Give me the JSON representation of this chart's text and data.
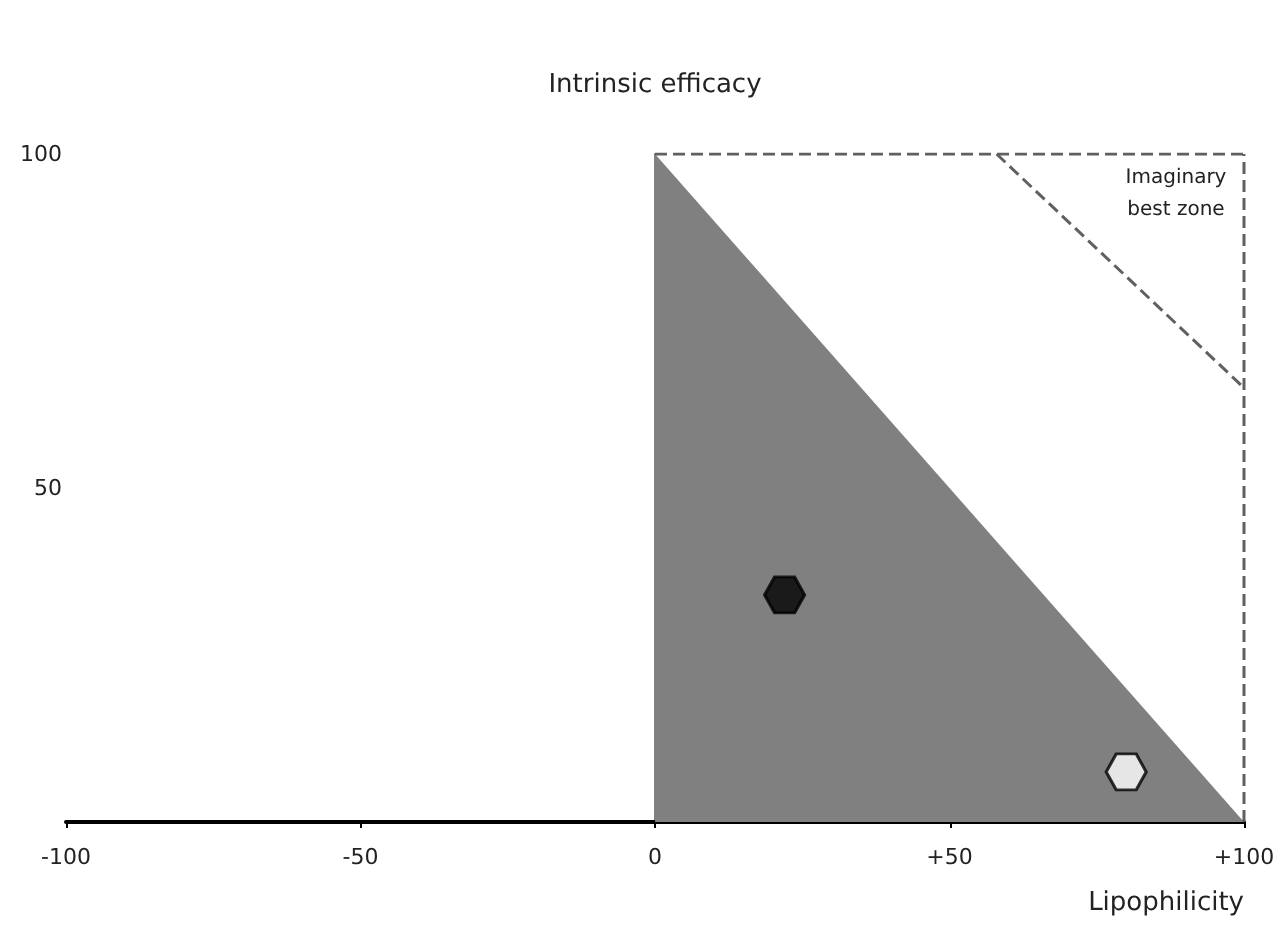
{
  "chart_data": {
    "type": "scatter",
    "xlabel": "Lipophilicity",
    "ylabel": "Intrinsic efficacy",
    "xlim": [
      -100,
      100
    ],
    "xticks": [
      {
        "value": -100,
        "label": "-100"
      },
      {
        "value": -50,
        "label": "-50"
      },
      {
        "value": 0,
        "label": "0"
      },
      {
        "value": 50,
        "label": "+50"
      },
      {
        "value": 100,
        "label": "+100"
      }
    ],
    "ylim": [
      0,
      100
    ],
    "yticks": [
      50,
      100
    ],
    "annotations": [
      "Imaginary best zone"
    ],
    "ref_lines": [
      {
        "axis": "x",
        "value": 100,
        "color": "#606060",
        "line_style": "dashed"
      }
    ],
    "series": [
      {
        "type": "area",
        "color": "#808080",
        "x": [
          0,
          100
        ],
        "values": [
          100,
          0
        ]
      },
      {
        "type": "line",
        "color": "#606060",
        "line_style": "dashed",
        "x": [
          0,
          100
        ],
        "values": [
          100,
          100
        ]
      },
      {
        "type": "line",
        "color": "#606060",
        "line_style": "dashed",
        "x": [
          58,
          100
        ],
        "values": [
          100,
          65
        ]
      },
      {
        "color": "#000000",
        "x": [
          22
        ],
        "values": [
          34
        ]
      },
      {
        "color": "#ffffff",
        "x": [
          80
        ],
        "values": [
          7.5
        ]
      }
    ]
  }
}
